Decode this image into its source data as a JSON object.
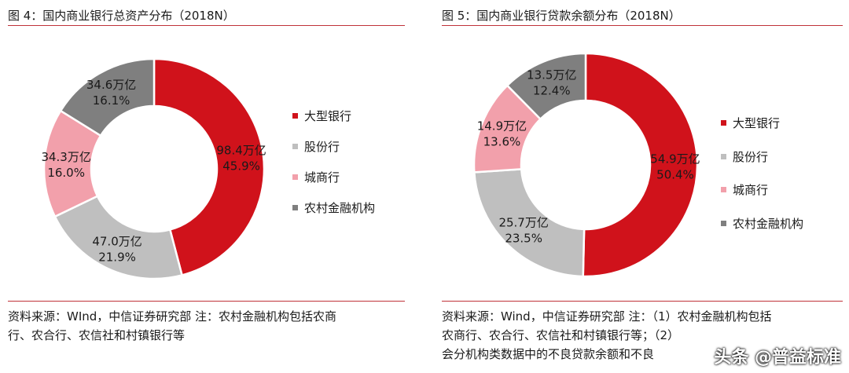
{
  "colors": {
    "large": "#d0121b",
    "joint": "#bfbfbf",
    "city": "#f2a0ab",
    "rural": "#7f7f7f",
    "rule": "#c0323a"
  },
  "left": {
    "title": "图 4：国内商业银行总资产分布（2018N）",
    "source_line1": "资料来源：WInd，中信证券研究部    注：农村金融机构包括农商",
    "source_line2": "行、农合行、农信社和村镇银行等"
  },
  "right": {
    "title": "图 5：国内商业银行贷款余额分布（2018N）",
    "source_line1": "资料来源：Wind，中信证券研究部    注：（1）农村金融机构包括",
    "source_line2": "农商行、农合行、农信社和村镇银行等；（2）",
    "source_line3": "会分机构类数据中的不良贷款余额和不良"
  },
  "watermark": "头条 @普益标准",
  "chart_data": [
    {
      "type": "pie",
      "title": "图 4：国内商业银行总资产分布（2018N）",
      "labels": [
        "大型银行",
        "股份行",
        "城商行",
        "农村金融机构"
      ],
      "values_text": [
        "98.4万亿",
        "47.0万亿",
        "34.3万亿",
        "34.6万亿"
      ],
      "values": [
        98.4,
        47.0,
        34.3,
        34.6
      ],
      "percents_text": [
        "45.9%",
        "21.9%",
        "16.0%",
        "16.1%"
      ],
      "percents": [
        45.9,
        21.9,
        16.0,
        16.1
      ],
      "unit": "万亿",
      "legend": "right",
      "style": "donut"
    },
    {
      "type": "pie",
      "title": "图 5：国内商业银行贷款余额分布（2018N）",
      "labels": [
        "大型银行",
        "股份行",
        "城商行",
        "农村金融机构"
      ],
      "values_text": [
        "54.9万亿",
        "25.7万亿",
        "14.9万亿",
        "13.5万亿"
      ],
      "values": [
        54.9,
        25.7,
        14.9,
        13.5
      ],
      "percents_text": [
        "50.4%",
        "23.5%",
        "13.6%",
        "12.4%"
      ],
      "percents": [
        50.4,
        23.5,
        13.6,
        12.4
      ],
      "unit": "万亿",
      "legend": "right",
      "style": "donut"
    }
  ]
}
